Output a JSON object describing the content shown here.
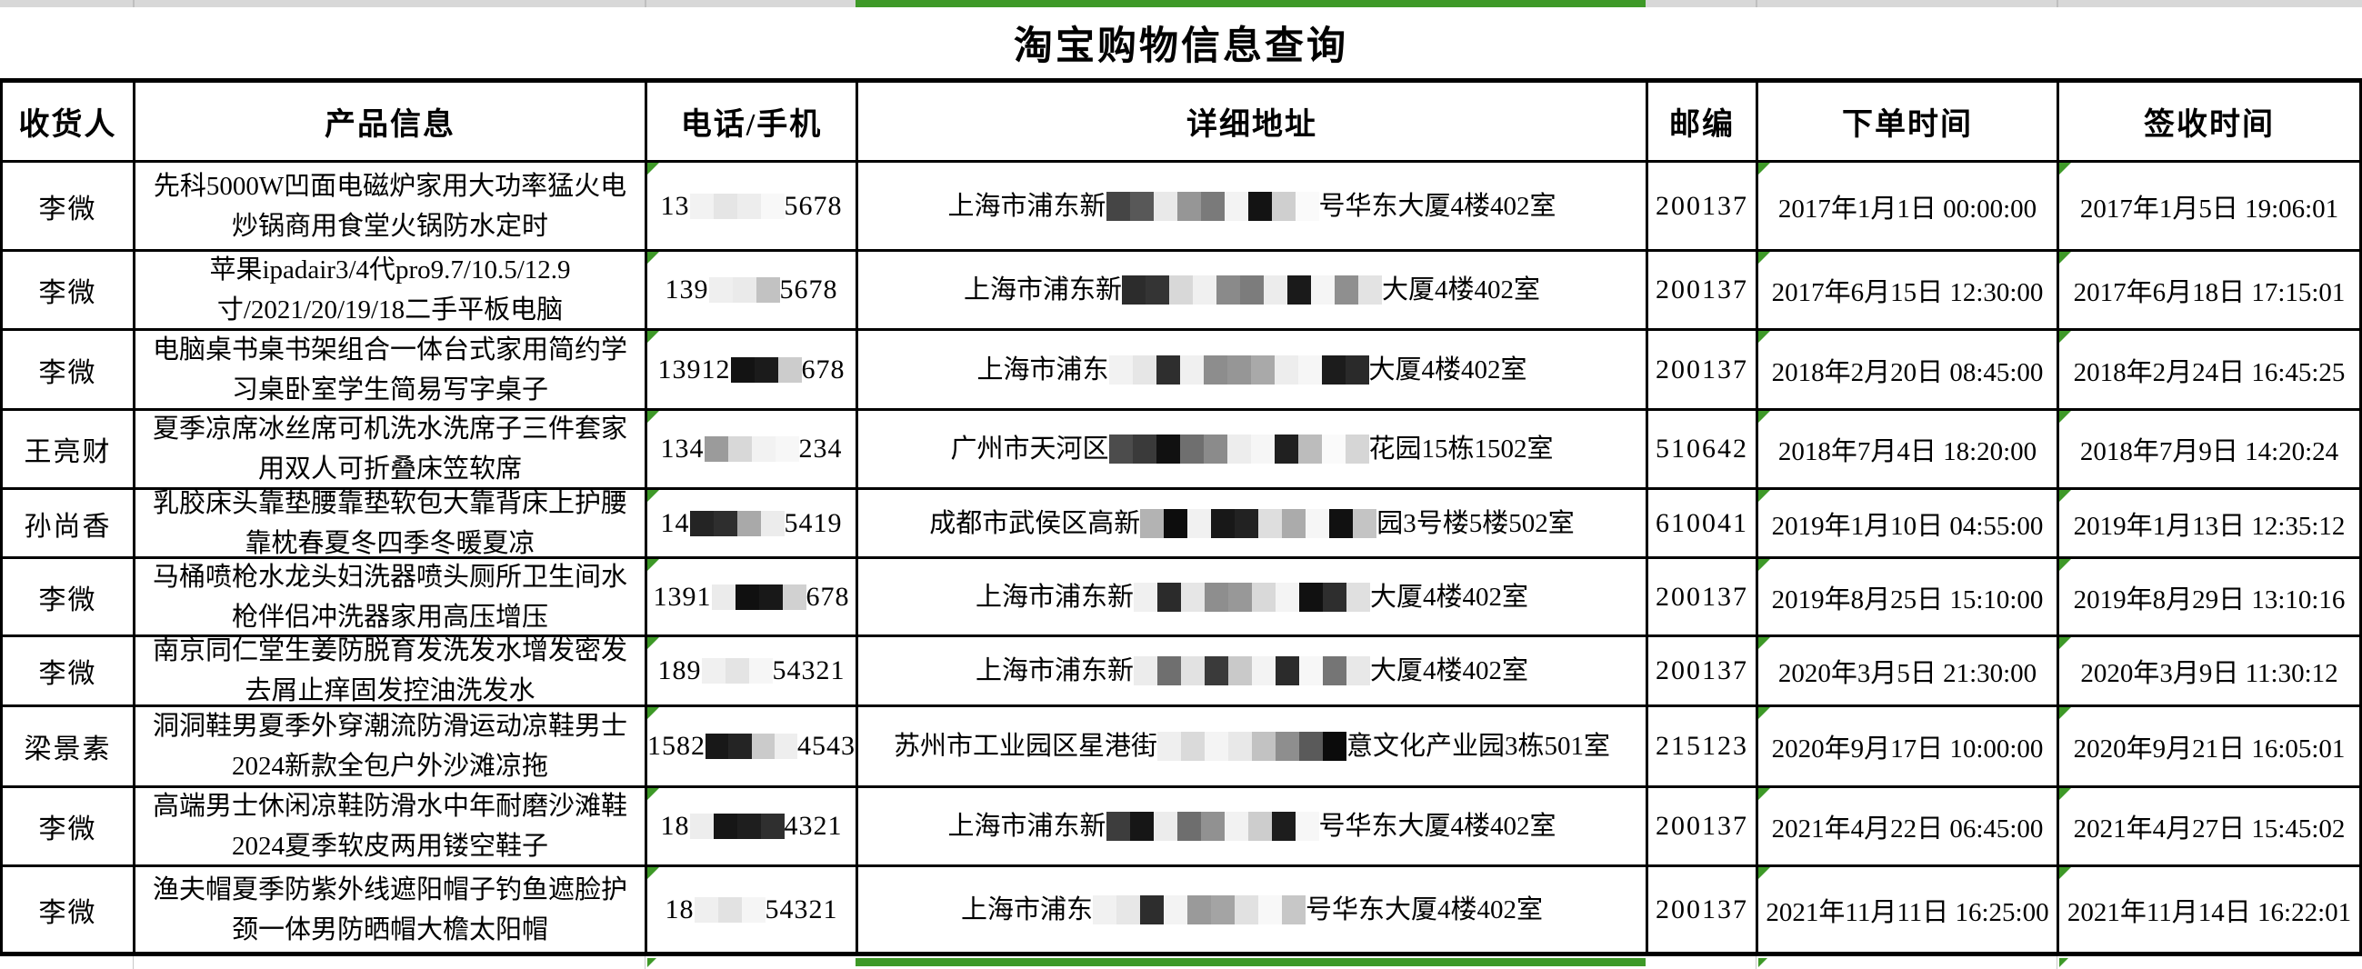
{
  "title": "淘宝购物信息查询",
  "colors": {
    "accent_green": "#3e9928",
    "strip_gray": "#d8d8d8",
    "grid_line": "#000000"
  },
  "columns": [
    {
      "key": "recipient",
      "label": "收货人"
    },
    {
      "key": "product",
      "label": "产品信息"
    },
    {
      "key": "phone",
      "label": "电话/手机"
    },
    {
      "key": "address",
      "label": "详细地址"
    },
    {
      "key": "postal",
      "label": "邮编"
    },
    {
      "key": "order_time",
      "label": "下单时间"
    },
    {
      "key": "sign_time",
      "label": "签收时间"
    }
  ],
  "error_marker_columns": [
    "phone",
    "order_time",
    "sign_time"
  ],
  "rows": [
    {
      "recipient": "李微",
      "product": "先科5000W凹面电磁炉家用大功率猛火电炒锅商用食堂火锅防水定时",
      "phone": [
        {
          "t": "13"
        },
        {
          "b": [
            "#f2f2f2",
            "#e5e5e5",
            "#ededed",
            "#f8f8f8"
          ]
        },
        {
          "t": "5678"
        }
      ],
      "address": [
        {
          "t": "上海市浦东新"
        },
        {
          "m": [
            "#454545",
            "#585858",
            "#e9e9e9",
            "#969696",
            "#7a7a7a",
            "#f3f3f3",
            "#131313",
            "#cfcfcf",
            "#fafafa"
          ]
        },
        {
          "t": "号华东大厦4楼402室"
        }
      ],
      "postal": "200137",
      "order_time": "2017年1月1日 00:00:00",
      "sign_time": "2017年1月5日 19:06:01"
    },
    {
      "recipient": "李微",
      "product": "苹果ipadair3/4代pro9.7/10.5/12.9寸/2021/20/19/18二手平板电脑",
      "phone": [
        {
          "t": "139"
        },
        {
          "b": [
            "#efefef",
            "#eaeaea",
            "#c2c2c2"
          ]
        },
        {
          "t": "5678"
        }
      ],
      "address": [
        {
          "t": "上海市浦东新"
        },
        {
          "m": [
            "#2c2c2c",
            "#343434",
            "#d8d8d8",
            "#f0f0f0",
            "#8a8a8a",
            "#7c7c7c",
            "#ececec",
            "#1a1a1a",
            "#f5f5f5",
            "#8f8f8f",
            "#e3e3e3"
          ]
        },
        {
          "t": "大厦4楼402室"
        }
      ],
      "postal": "200137",
      "order_time": "2017年6月15日 12:30:00",
      "sign_time": "2017年6月18日 17:15:01"
    },
    {
      "recipient": "李微",
      "product": "电脑桌书桌书架组合一体台式家用简约学习桌卧室学生简易写字桌子",
      "phone": [
        {
          "t": "13912"
        },
        {
          "b": [
            "#131313",
            "#1b1b1b",
            "#cccccc"
          ]
        },
        {
          "t": "678"
        }
      ],
      "address": [
        {
          "t": "上海市浦东"
        },
        {
          "m": [
            "#f2f2f2",
            "#e6e6e6",
            "#2e2e2e",
            "#f0f0f0",
            "#8d8d8d",
            "#969696",
            "#a9a9a9",
            "#ededed",
            "#f6f6f6",
            "#1c1c1c",
            "#2a2a2a"
          ]
        },
        {
          "t": "大厦4楼402室"
        }
      ],
      "postal": "200137",
      "order_time": "2018年2月20日 08:45:00",
      "sign_time": "2018年2月24日 16:45:25"
    },
    {
      "recipient": "王亮财",
      "product": "夏季凉席冰丝席可机洗水洗席子三件套家用双人可折叠床笠软席",
      "phone": [
        {
          "t": "134"
        },
        {
          "b": [
            "#9b9b9b",
            "#d8d8d8",
            "#f2f2f2",
            "#f7f7f7"
          ]
        },
        {
          "t": "234"
        }
      ],
      "address": [
        {
          "t": "广州市天河区"
        },
        {
          "m": [
            "#4c4c4c",
            "#3a3a3a",
            "#111111",
            "#6f6f6f",
            "#8b8b8b",
            "#ededed",
            "#f6f6f6",
            "#202020",
            "#bcbcbc",
            "#fafafa",
            "#d6d6d6"
          ]
        },
        {
          "t": "花园15栋1502室"
        }
      ],
      "postal": "510642",
      "order_time": "2018年7月4日 18:20:00",
      "sign_time": "2018年7月9日 14:20:24"
    },
    {
      "recipient": "孙尚香",
      "product": "乳胶床头靠垫腰靠垫软包大靠背床上护腰靠枕春夏冬四季冬暖夏凉",
      "phone": [
        {
          "t": "14"
        },
        {
          "b": [
            "#242424",
            "#2e2e2e",
            "#a9a9a9",
            "#ececec"
          ]
        },
        {
          "t": "5419"
        }
      ],
      "address": [
        {
          "t": "成都市武侯区高新"
        },
        {
          "m": [
            "#b3b3b3",
            "#0d0d0d",
            "#f1f1f1",
            "#181818",
            "#222222",
            "#dedede",
            "#ababab",
            "#f6f6f6",
            "#111111",
            "#c4c4c4"
          ]
        },
        {
          "t": "园3号楼5楼502室"
        }
      ],
      "postal": "610041",
      "order_time": "2019年1月10日 04:55:00",
      "sign_time": "2019年1月13日 12:35:12"
    },
    {
      "recipient": "李微",
      "product": "马桶喷枪水龙头妇洗器喷头厕所卫生间水枪伴侣冲洗器家用高压增压",
      "phone": [
        {
          "t": "1391"
        },
        {
          "b": [
            "#ebebeb",
            "#101010",
            "#181818",
            "#d1d1d1"
          ]
        },
        {
          "t": "678"
        }
      ],
      "address": [
        {
          "t": "上海市浦东新"
        },
        {
          "m": [
            "#f0f0f0",
            "#2b2b2b",
            "#e6e6e6",
            "#8e8e8e",
            "#989898",
            "#d9d9d9",
            "#f4f4f4",
            "#111111",
            "#2e2e2e",
            "#e0e0e0"
          ]
        },
        {
          "t": "大厦4楼402室"
        }
      ],
      "postal": "200137",
      "order_time": "2019年8月25日 15:10:00",
      "sign_time": "2019年8月29日 13:10:16"
    },
    {
      "recipient": "李微",
      "product": "南京同仁堂生姜防脱育发洗发水增发密发去屑止痒固发控油洗发水",
      "phone": [
        {
          "t": "189"
        },
        {
          "b": [
            "#f0f0f0",
            "#e4e4e4",
            "#f6f6f6"
          ]
        },
        {
          "t": "54321"
        }
      ],
      "address": [
        {
          "t": "上海市浦东新"
        },
        {
          "m": [
            "#ececec",
            "#6f6f6f",
            "#e2e2e2",
            "#3a3a3a",
            "#c9c9c9",
            "#f3f3f3",
            "#2b2b2b",
            "#f7f7f7",
            "#757575",
            "#e8e8e8"
          ]
        },
        {
          "t": "大厦4楼402室"
        }
      ],
      "postal": "200137",
      "order_time": "2020年3月5日 21:30:00",
      "sign_time": "2020年3月9日 11:30:12"
    },
    {
      "recipient": "梁景素",
      "product": "洞洞鞋男夏季外穿潮流防滑运动凉鞋男士2024新款全包户外沙滩凉拖",
      "phone": [
        {
          "t": "1582"
        },
        {
          "b": [
            "#181818",
            "#242424",
            "#cbcbcb",
            "#eeeeee"
          ]
        },
        {
          "t": "4543"
        }
      ],
      "address": [
        {
          "t": "苏州市工业园区星港街"
        },
        {
          "m": [
            "#efefef",
            "#dadada",
            "#f4f4f4",
            "#e8e8e8",
            "#c2c2c2",
            "#8e8e8e",
            "#5a5a5a",
            "#0b0b0b"
          ]
        },
        {
          "t": "意文化产业园3栋501室"
        }
      ],
      "postal": "215123",
      "order_time": "2020年9月17日 10:00:00",
      "sign_time": "2020年9月21日 16:05:01"
    },
    {
      "recipient": "李微",
      "product": "高端男士休闲凉鞋防滑水中年耐磨沙滩鞋2024夏季软皮两用镂空鞋子",
      "phone": [
        {
          "t": "18"
        },
        {
          "b": [
            "#ededed",
            "#161616",
            "#1e1e1e",
            "#2f2f2f"
          ]
        },
        {
          "t": "4321"
        }
      ],
      "address": [
        {
          "t": "上海市浦东新"
        },
        {
          "m": [
            "#3d3d3d",
            "#161616",
            "#ececec",
            "#6e6e6e",
            "#919191",
            "#f2f2f2",
            "#cdcdcd",
            "#1d1d1d",
            "#f7f7f7"
          ]
        },
        {
          "t": "号华东大厦4楼402室"
        }
      ],
      "postal": "200137",
      "order_time": "2021年4月22日 06:45:00",
      "sign_time": "2021年4月27日 15:45:02"
    },
    {
      "recipient": "李微",
      "product": "渔夫帽夏季防紫外线遮阳帽子钓鱼遮脸护颈一体男防晒帽大檐太阳帽",
      "phone": [
        {
          "t": "18"
        },
        {
          "b": [
            "#efefef",
            "#e2e2e2",
            "#f5f5f5"
          ]
        },
        {
          "t": "54321"
        }
      ],
      "address": [
        {
          "t": "上海市浦东"
        },
        {
          "m": [
            "#f1f1f1",
            "#e7e7e7",
            "#2d2d2d",
            "#f3f3f3",
            "#9a9a9a",
            "#a4a4a4",
            "#e1e1e1",
            "#f8f8f8",
            "#c7c7c7"
          ]
        },
        {
          "t": "号华东大厦4楼402室"
        }
      ],
      "postal": "200137",
      "order_time": "2021年11月11日 16:25:00",
      "sign_time": "2021年11月14日 16:22:01"
    }
  ]
}
